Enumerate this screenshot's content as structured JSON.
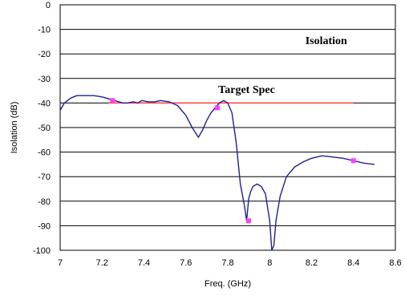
{
  "chart_data": {
    "type": "line",
    "xlabel": "Freq. (GHz)",
    "ylabel": "Isolation (dB)",
    "xlim": [
      7,
      8.6
    ],
    "ylim": [
      -100,
      0
    ],
    "x_ticks": [
      "7",
      "7.2",
      "7.4",
      "7.6",
      "7.8",
      "8",
      "8.2",
      "8.4",
      "8.6"
    ],
    "y_ticks": [
      "0",
      "-10",
      "-20",
      "-30",
      "-40",
      "-50",
      "-60",
      "-70",
      "-80",
      "-90",
      "-100"
    ],
    "x_tick_values": [
      7,
      7.2,
      7.4,
      7.6,
      7.8,
      8,
      8.2,
      8.4,
      8.6
    ],
    "y_tick_values": [
      0,
      -10,
      -20,
      -30,
      -40,
      -50,
      -60,
      -70,
      -80,
      -90,
      -100
    ],
    "grid": "horizontal",
    "annotations": [
      {
        "text": "Isolation",
        "x": 8.27,
        "y": -16
      },
      {
        "text": "Target Spec",
        "x": 7.89,
        "y": -36
      }
    ],
    "target_spec": {
      "x": [
        7.23,
        8.4
      ],
      "y": -40,
      "color": "#ff4040"
    },
    "series": [
      {
        "color": "#1f1fa0",
        "x": [
          7,
          7.02,
          7.05,
          7.08,
          7.12,
          7.16,
          7.2,
          7.24,
          7.28,
          7.3,
          7.32,
          7.35,
          7.37,
          7.39,
          7.42,
          7.45,
          7.48,
          7.52,
          7.56,
          7.6,
          7.63,
          7.66,
          7.68,
          7.7,
          7.72,
          7.74,
          7.76,
          7.78,
          7.8,
          7.82,
          7.84,
          7.86,
          7.88,
          7.89,
          7.9,
          7.91,
          7.92,
          7.94,
          7.96,
          7.98,
          8,
          8.01,
          8.02,
          8.03,
          8.05,
          8.08,
          8.12,
          8.16,
          8.2,
          8.25,
          8.3,
          8.35,
          8.4,
          8.45,
          8.5
        ],
        "y": [
          -43,
          -40,
          -38,
          -37,
          -37,
          -37,
          -37.5,
          -38.5,
          -39.5,
          -40,
          -40,
          -39.5,
          -40,
          -39,
          -39.5,
          -39.5,
          -39,
          -39.5,
          -41,
          -45,
          -50,
          -54,
          -51,
          -47,
          -44,
          -42,
          -40,
          -39,
          -40,
          -44,
          -56,
          -73,
          -82,
          -88,
          -79,
          -76,
          -74,
          -73,
          -74,
          -77,
          -88,
          -100,
          -98,
          -88,
          -78,
          -70,
          -66,
          -64,
          -62.5,
          -61.5,
          -62,
          -62.5,
          -63.5,
          -64.5,
          -65
        ]
      }
    ],
    "markers": [
      {
        "x": 7.25,
        "y": -39,
        "color": "#ff40ff"
      },
      {
        "x": 7.75,
        "y": -42,
        "color": "#ff40ff"
      },
      {
        "x": 7.9,
        "y": -88,
        "color": "#ff40ff"
      },
      {
        "x": 8.4,
        "y": -63.5,
        "color": "#ff40ff"
      }
    ]
  }
}
